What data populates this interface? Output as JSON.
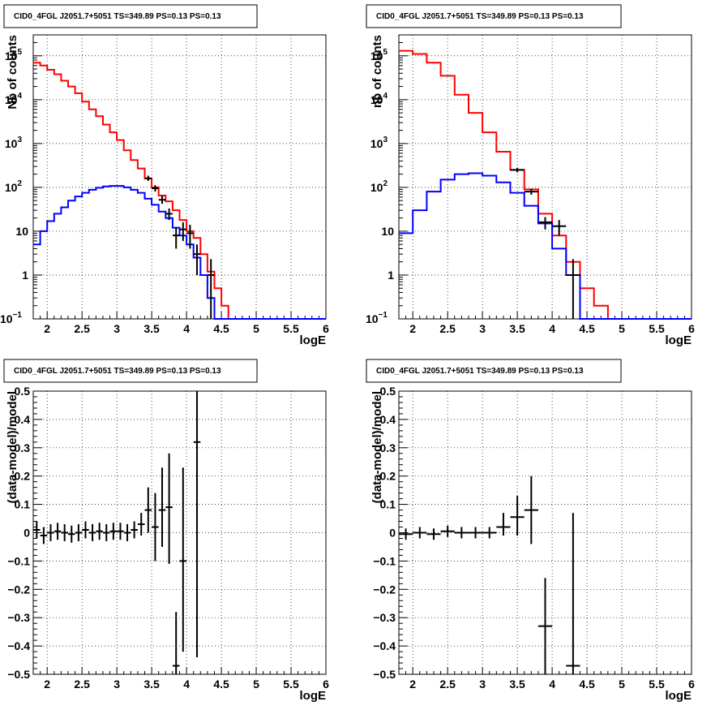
{
  "chart_data": [
    {
      "type": "line",
      "title": "CID0_4FGL J2051.7+5051 TS=349.89 PS=0.13 PS=0.13",
      "xlabel": "logE",
      "ylabel": "Nb of counts",
      "xlim": [
        1.8,
        6.0
      ],
      "ylim": [
        0.1,
        300000
      ],
      "yscale": "log",
      "grid": true,
      "xticks": [
        "2",
        "2.5",
        "3",
        "3.5",
        "4",
        "4.5",
        "5",
        "5.5",
        "6"
      ],
      "yticks": [
        {
          "base": "10",
          "exp": "−1",
          "v": 0.1
        },
        {
          "base": "1",
          "exp": "",
          "v": 1
        },
        {
          "base": "10",
          "exp": "",
          "v": 10
        },
        {
          "base": "10",
          "exp": "2",
          "v": 100
        },
        {
          "base": "10",
          "exp": "3",
          "v": 1000
        },
        {
          "base": "10",
          "exp": "4",
          "v": 10000
        },
        {
          "base": "10",
          "exp": "5",
          "v": 100000
        }
      ],
      "bin_edges": [
        1.8,
        1.9,
        2.0,
        2.1,
        2.2,
        2.3,
        2.4,
        2.5,
        2.6,
        2.7,
        2.8,
        2.9,
        3.0,
        3.1,
        3.2,
        3.3,
        3.4,
        3.5,
        3.6,
        3.7,
        3.8,
        3.9,
        4.0,
        4.1,
        4.2,
        4.3,
        4.4,
        4.5,
        4.6,
        4.7,
        4.8,
        4.9,
        5.0,
        5.1,
        5.2,
        5.3,
        5.4,
        5.5,
        5.6,
        5.7,
        5.8,
        5.9,
        6.0
      ],
      "series": [
        {
          "color": "#ff0000",
          "values": [
            70000,
            60000,
            48000,
            38000,
            27000,
            20000,
            14000,
            9000,
            6000,
            4200,
            2700,
            1800,
            1200,
            700,
            420,
            270,
            160,
            100,
            65,
            48,
            30,
            18,
            10,
            7,
            3,
            1.2,
            0.5,
            0.2,
            0.1,
            0.1,
            0.1,
            0.1,
            0.1,
            0.1,
            0.1,
            0.1,
            0.1,
            0.1,
            0.1,
            0.1,
            0.1,
            0.1
          ]
        },
        {
          "color": "#0000ff",
          "values": [
            5,
            10,
            17,
            25,
            35,
            50,
            62,
            75,
            88,
            98,
            105,
            108,
            108,
            100,
            88,
            75,
            55,
            40,
            28,
            20,
            12,
            8,
            5,
            2.5,
            1,
            0.3,
            0.1,
            0.1,
            0.1,
            0.1,
            0.1,
            0.1,
            0.1,
            0.1,
            0.1,
            0.1,
            0.1,
            0.1,
            0.1,
            0.1,
            0.1,
            0.1
          ]
        }
      ],
      "points": [
        {
          "x": 3.45,
          "y": 160,
          "ylo": 140,
          "yhi": 185,
          "xerr": 0.05
        },
        {
          "x": 3.55,
          "y": 95,
          "ylo": 80,
          "yhi": 112,
          "xerr": 0.05
        },
        {
          "x": 3.65,
          "y": 52,
          "ylo": 42,
          "yhi": 64,
          "xerr": 0.05
        },
        {
          "x": 3.75,
          "y": 25,
          "ylo": 18,
          "yhi": 33,
          "xerr": 0.05
        },
        {
          "x": 3.85,
          "y": 8,
          "ylo": 4,
          "yhi": 12,
          "xerr": 0.05
        },
        {
          "x": 3.95,
          "y": 11,
          "ylo": 6,
          "yhi": 16,
          "xerr": 0.05
        },
        {
          "x": 4.05,
          "y": 9,
          "ylo": 4,
          "yhi": 14,
          "xerr": 0.05
        },
        {
          "x": 4.15,
          "y": 3,
          "ylo": 1,
          "yhi": 5,
          "xerr": 0.05
        },
        {
          "x": 4.35,
          "y": 1,
          "ylo": 0.1,
          "yhi": 2.3,
          "xerr": 0.05
        }
      ]
    },
    {
      "type": "line",
      "title": "CID0_4FGL J2051.7+5051 TS=349.89 PS=0.13 PS=0.13",
      "xlabel": "logE",
      "ylabel": "nb of counts",
      "xlim": [
        1.8,
        6.0
      ],
      "ylim": [
        0.1,
        300000
      ],
      "yscale": "log",
      "grid": true,
      "xticks": [
        "2",
        "2.5",
        "3",
        "3.5",
        "4",
        "4.5",
        "5",
        "5.5",
        "6"
      ],
      "yticks": [
        {
          "base": "10",
          "exp": "−1",
          "v": 0.1
        },
        {
          "base": "1",
          "exp": "",
          "v": 1
        },
        {
          "base": "10",
          "exp": "",
          "v": 10
        },
        {
          "base": "10",
          "exp": "2",
          "v": 100
        },
        {
          "base": "10",
          "exp": "3",
          "v": 1000
        },
        {
          "base": "10",
          "exp": "4",
          "v": 10000
        },
        {
          "base": "10",
          "exp": "5",
          "v": 100000
        }
      ],
      "bin_edges": [
        1.8,
        2.0,
        2.2,
        2.4,
        2.6,
        2.8,
        3.0,
        3.2,
        3.4,
        3.6,
        3.8,
        4.0,
        4.2,
        4.4,
        4.6,
        4.8,
        5.0,
        5.2,
        5.4,
        5.6,
        5.8,
        6.0
      ],
      "series": [
        {
          "color": "#ff0000",
          "values": [
            130000,
            110000,
            70000,
            35000,
            13000,
            5000,
            1800,
            650,
            250,
            90,
            25,
            8,
            2,
            0.5,
            0.2,
            0.1,
            0.1,
            0.1,
            0.1,
            0.1,
            0.1
          ]
        },
        {
          "color": "#0000ff",
          "values": [
            9,
            30,
            80,
            150,
            200,
            210,
            185,
            130,
            75,
            38,
            15,
            4,
            1,
            0.1,
            0.1,
            0.1,
            0.1,
            0.1,
            0.1,
            0.1,
            0.1
          ]
        }
      ],
      "points": [
        {
          "x": 3.5,
          "y": 250,
          "ylo": 220,
          "yhi": 280,
          "xerr": 0.1
        },
        {
          "x": 3.7,
          "y": 80,
          "ylo": 68,
          "yhi": 92,
          "xerr": 0.1
        },
        {
          "x": 3.9,
          "y": 16,
          "ylo": 11,
          "yhi": 21,
          "xerr": 0.1
        },
        {
          "x": 4.1,
          "y": 13,
          "ylo": 8,
          "yhi": 18,
          "xerr": 0.1
        },
        {
          "x": 4.3,
          "y": 1,
          "ylo": 0.1,
          "yhi": 2.3,
          "xerr": 0.1
        }
      ]
    },
    {
      "type": "scatter",
      "title": "CID0_4FGL J2051.7+5051 TS=349.89 PS=0.13 PS=0.13",
      "xlabel": "logE",
      "ylabel": "(data-model)/model",
      "xlim": [
        1.8,
        6.0
      ],
      "ylim": [
        -0.5,
        0.5
      ],
      "grid": true,
      "xticks": [
        "2",
        "2.5",
        "3",
        "3.5",
        "4",
        "4.5",
        "5",
        "5.5",
        "6"
      ],
      "yticks": [
        "−0.5",
        "−0.4",
        "−0.3",
        "−0.2",
        "−0.1",
        "0",
        "0.1",
        "0.2",
        "0.3",
        "0.4",
        "0.5"
      ],
      "points": [
        {
          "x": 1.85,
          "y": 0.01,
          "ylo": -0.02,
          "yhi": 0.04,
          "xerr": 0.05
        },
        {
          "x": 1.95,
          "y": -0.01,
          "ylo": -0.04,
          "yhi": 0.02,
          "xerr": 0.05
        },
        {
          "x": 2.05,
          "y": 0.0,
          "ylo": -0.03,
          "yhi": 0.03,
          "xerr": 0.05
        },
        {
          "x": 2.15,
          "y": 0.005,
          "ylo": -0.025,
          "yhi": 0.035,
          "xerr": 0.05
        },
        {
          "x": 2.25,
          "y": 0.0,
          "ylo": -0.03,
          "yhi": 0.03,
          "xerr": 0.05
        },
        {
          "x": 2.35,
          "y": -0.005,
          "ylo": -0.035,
          "yhi": 0.025,
          "xerr": 0.05
        },
        {
          "x": 2.45,
          "y": 0.0,
          "ylo": -0.03,
          "yhi": 0.03,
          "xerr": 0.05
        },
        {
          "x": 2.55,
          "y": 0.01,
          "ylo": -0.02,
          "yhi": 0.04,
          "xerr": 0.05
        },
        {
          "x": 2.65,
          "y": 0.0,
          "ylo": -0.03,
          "yhi": 0.03,
          "xerr": 0.05
        },
        {
          "x": 2.75,
          "y": 0.005,
          "ylo": -0.025,
          "yhi": 0.035,
          "xerr": 0.05
        },
        {
          "x": 2.85,
          "y": 0.0,
          "ylo": -0.03,
          "yhi": 0.03,
          "xerr": 0.05
        },
        {
          "x": 2.95,
          "y": 0.005,
          "ylo": -0.025,
          "yhi": 0.035,
          "xerr": 0.05
        },
        {
          "x": 3.05,
          "y": 0.005,
          "ylo": -0.025,
          "yhi": 0.035,
          "xerr": 0.05
        },
        {
          "x": 3.15,
          "y": 0.0,
          "ylo": -0.03,
          "yhi": 0.03,
          "xerr": 0.05
        },
        {
          "x": 3.25,
          "y": 0.01,
          "ylo": -0.02,
          "yhi": 0.04,
          "xerr": 0.05
        },
        {
          "x": 3.35,
          "y": 0.03,
          "ylo": -0.01,
          "yhi": 0.07,
          "xerr": 0.05
        },
        {
          "x": 3.45,
          "y": 0.08,
          "ylo": 0.0,
          "yhi": 0.16,
          "xerr": 0.05
        },
        {
          "x": 3.55,
          "y": 0.02,
          "ylo": -0.1,
          "yhi": 0.14,
          "xerr": 0.05
        },
        {
          "x": 3.65,
          "y": 0.08,
          "ylo": -0.05,
          "yhi": 0.23,
          "xerr": 0.05
        },
        {
          "x": 3.75,
          "y": 0.09,
          "ylo": -0.11,
          "yhi": 0.28,
          "xerr": 0.05
        },
        {
          "x": 3.85,
          "y": -0.47,
          "ylo": -0.5,
          "yhi": -0.28,
          "xerr": 0.05
        },
        {
          "x": 3.95,
          "y": -0.1,
          "ylo": -0.42,
          "yhi": 0.23,
          "xerr": 0.05
        },
        {
          "x": 4.15,
          "y": 0.32,
          "ylo": -0.44,
          "yhi": 0.5,
          "xerr": 0.05
        }
      ]
    },
    {
      "type": "scatter",
      "title": "CID0_4FGL J2051.7+5051 TS=349.89 PS=0.13 PS=0.13",
      "xlabel": "logE",
      "ylabel": "(data-model)/model",
      "xlim": [
        1.8,
        6.0
      ],
      "ylim": [
        -0.5,
        0.5
      ],
      "grid": true,
      "xticks": [
        "2",
        "2.5",
        "3",
        "3.5",
        "4",
        "4.5",
        "5",
        "5.5",
        "6"
      ],
      "yticks": [
        "−0.5",
        "−0.4",
        "−0.3",
        "−0.2",
        "−0.1",
        "0",
        "0.1",
        "0.2",
        "0.3",
        "0.4",
        "0.5"
      ],
      "points": [
        {
          "x": 1.9,
          "y": -0.005,
          "ylo": -0.025,
          "yhi": 0.015,
          "xerr": 0.1
        },
        {
          "x": 2.1,
          "y": 0.0,
          "ylo": -0.02,
          "yhi": 0.02,
          "xerr": 0.1
        },
        {
          "x": 2.3,
          "y": -0.005,
          "ylo": -0.025,
          "yhi": 0.015,
          "xerr": 0.1
        },
        {
          "x": 2.5,
          "y": 0.005,
          "ylo": -0.015,
          "yhi": 0.025,
          "xerr": 0.1
        },
        {
          "x": 2.7,
          "y": 0.0,
          "ylo": -0.02,
          "yhi": 0.02,
          "xerr": 0.1
        },
        {
          "x": 2.9,
          "y": 0.0,
          "ylo": -0.02,
          "yhi": 0.02,
          "xerr": 0.1
        },
        {
          "x": 3.1,
          "y": 0.0,
          "ylo": -0.02,
          "yhi": 0.02,
          "xerr": 0.1
        },
        {
          "x": 3.3,
          "y": 0.02,
          "ylo": -0.01,
          "yhi": 0.07,
          "xerr": 0.1
        },
        {
          "x": 3.5,
          "y": 0.055,
          "ylo": -0.01,
          "yhi": 0.13,
          "xerr": 0.1
        },
        {
          "x": 3.7,
          "y": 0.08,
          "ylo": -0.04,
          "yhi": 0.2,
          "xerr": 0.1
        },
        {
          "x": 3.9,
          "y": -0.33,
          "ylo": -0.5,
          "yhi": -0.16,
          "xerr": 0.1
        },
        {
          "x": 4.3,
          "y": -0.47,
          "ylo": -0.5,
          "yhi": 0.07,
          "xerr": 0.1
        }
      ]
    }
  ]
}
